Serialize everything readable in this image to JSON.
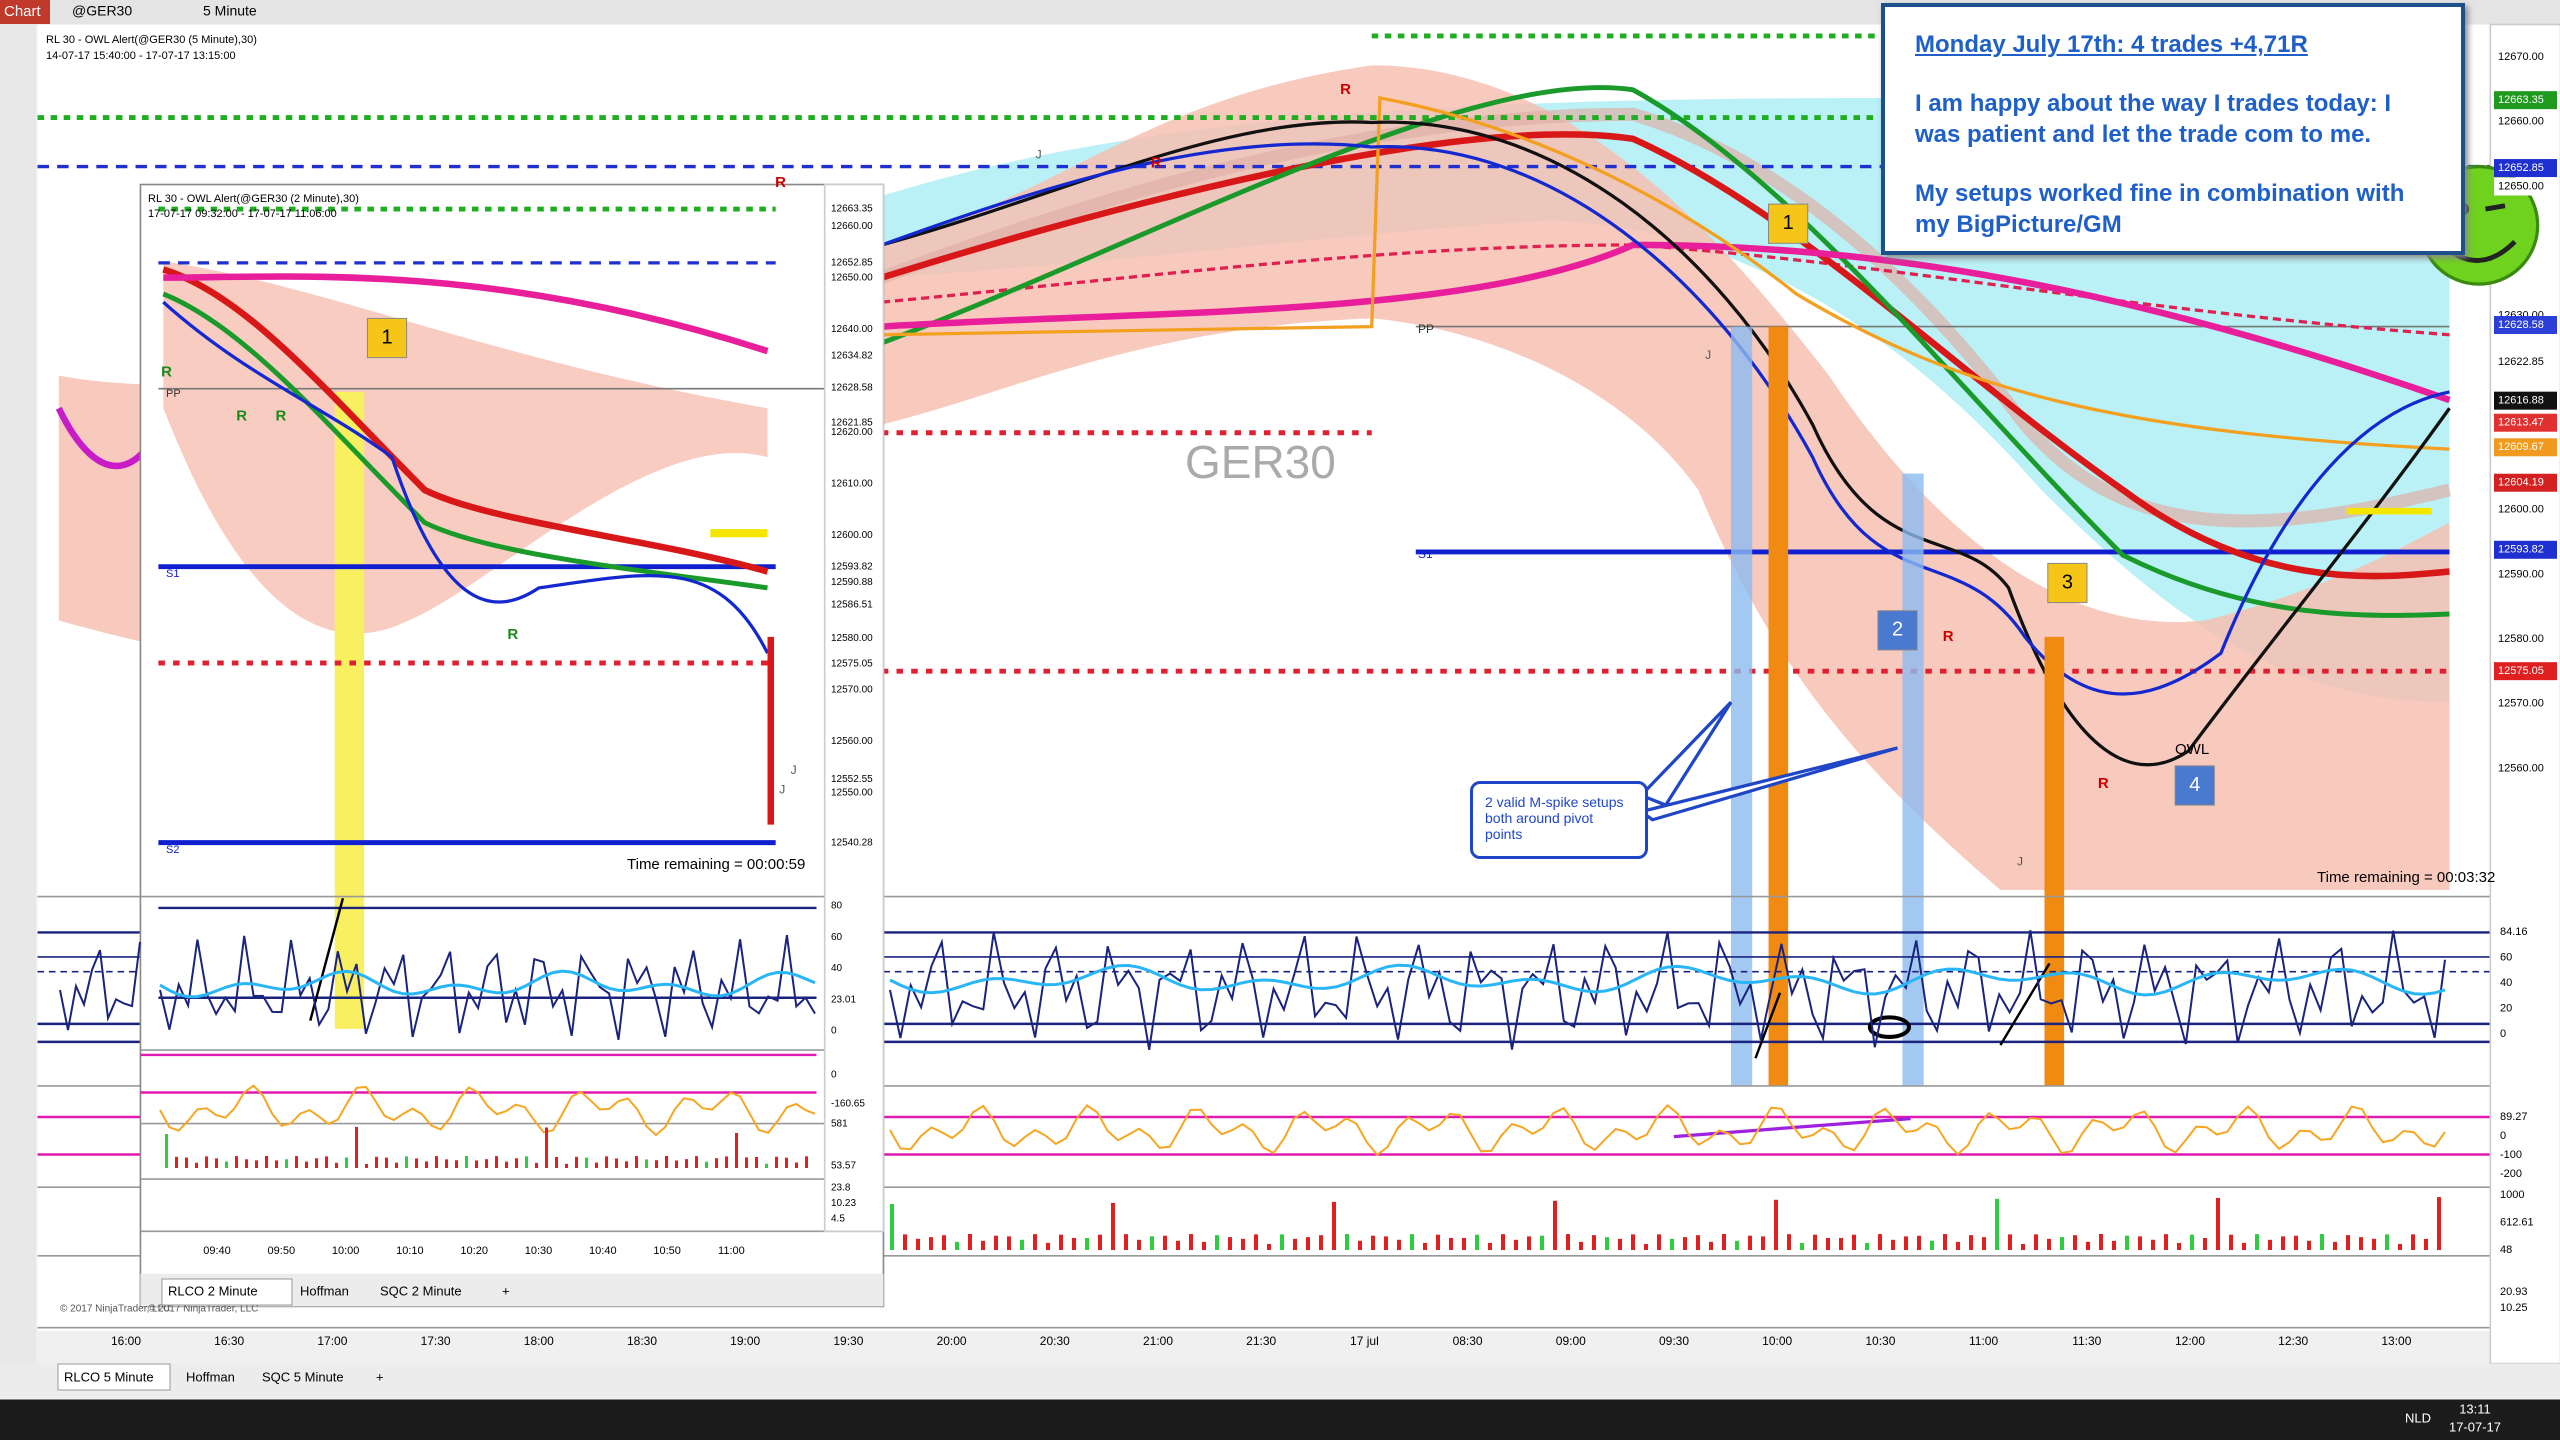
{
  "toolbar": {
    "chart_button": "Chart",
    "instrument": "@GER30",
    "interval": "5 Minute"
  },
  "main_chart": {
    "header": "RL 30 - OWL Alert(@GER30 (5 Minute),30)",
    "range": "14-07-17 15:40:00 - 17-07-17 13:15:00",
    "watermark": "GER30",
    "time_remaining": "Time remaining = 00:03:32",
    "pivot_labels": [
      "PP",
      "S1"
    ],
    "markers": [
      "1",
      "2",
      "3",
      "4"
    ],
    "owl": "OWL",
    "r_marker": "R",
    "j_marker": "J",
    "callout": "2 valid M-spike setups both around pivot points",
    "copyright": "© 2017 NinjaTrader, LLC",
    "price_labels": [
      {
        "text": "12670.00",
        "color": "#ffffff"
      },
      {
        "text": "12663.35",
        "color": "#1f9a1f"
      },
      {
        "text": "12660.00",
        "color": "#ffffff"
      },
      {
        "text": "12652.85",
        "color": "#1f2fd0"
      },
      {
        "text": "12650.00",
        "color": "#ffffff"
      },
      {
        "text": "12630.00",
        "color": "#ffffff"
      },
      {
        "text": "12628.58",
        "color": "#2b3fd6"
      },
      {
        "text": "12622.85",
        "color": "#ffffff"
      },
      {
        "text": "12616.88",
        "color": "#111111"
      },
      {
        "text": "12613.47",
        "color": "#e03030"
      },
      {
        "text": "12609.67",
        "color": "#f09a20"
      },
      {
        "text": "12604.19",
        "color": "#d42020"
      },
      {
        "text": "12600.00",
        "color": "#ffffff"
      },
      {
        "text": "12593.82",
        "color": "#1f2fd0"
      },
      {
        "text": "12590.00",
        "color": "#ffffff"
      },
      {
        "text": "12580.00",
        "color": "#ffffff"
      },
      {
        "text": "12575.05",
        "color": "#e02020"
      },
      {
        "text": "12570.00",
        "color": "#ffffff"
      },
      {
        "text": "12560.00",
        "color": "#ffffff"
      }
    ],
    "indicator_labels": [
      "84.16",
      "60",
      "40",
      "20",
      "0"
    ],
    "cci_labels": [
      "89.27",
      "0",
      "-100",
      "-200"
    ],
    "volume_labels": [
      "1000",
      "612.61",
      "48"
    ],
    "bottom_labels": [
      "20.93",
      "10.25"
    ],
    "time_labels": [
      "16:00",
      "16:30",
      "17:00",
      "17:30",
      "18:00",
      "18:30",
      "19:00",
      "19:30",
      "20:00",
      "20:30",
      "21:00",
      "21:30",
      "17 jul",
      "08:30",
      "09:00",
      "09:30",
      "10:00",
      "10:30",
      "11:00",
      "11:30",
      "12:00",
      "12:30",
      "13:00"
    ],
    "tabs": [
      "RLCO  5 Minute",
      "Hoffman",
      "SQC  5 Minute",
      "+"
    ]
  },
  "inset_chart": {
    "header": "RL 30 - OWL Alert(@GER30 (2 Minute),30)",
    "range": "17-07-17 09:32:00 - 17-07-17 11:06:00",
    "time_remaining": "Time remaining = 00:00:59",
    "pivot_labels": [
      "PP",
      "S1",
      "S2"
    ],
    "marker": "1",
    "copyright": "© 2017 NinjaTrader, LLC",
    "price_labels": [
      "12663.35",
      "12660.00",
      "12652.85",
      "12650.00",
      "12640.00",
      "12634.82",
      "12628.58",
      "12621.85",
      "12620.00",
      "12610.00",
      "12600.00",
      "12593.82",
      "12590.88",
      "12586.51",
      "12580.00",
      "12575.05",
      "12570.00",
      "12560.00",
      "12552.55",
      "12550.00",
      "12540.28"
    ],
    "indicator_labels": [
      "80",
      "60",
      "40",
      "23.01",
      "0"
    ],
    "cci_labels": [
      "0",
      "-160.65"
    ],
    "volume_labels": [
      "581",
      "53.57"
    ],
    "bottom_labels": [
      "23.8",
      "10.23",
      "4.5"
    ],
    "time_labels": [
      "09:40",
      "09:50",
      "10:00",
      "10:10",
      "10:20",
      "10:30",
      "10:40",
      "10:50",
      "11:00"
    ],
    "tabs": [
      "RLCO  2 Minute",
      "Hoffman",
      "SQC  2 Minute",
      "+"
    ]
  },
  "note": {
    "title": "Monday July 17th: 4 trades +4,71R",
    "paragraphs": [
      "I am happy about the way I trades today: I was patient and let the trade com to me.",
      "My setups worked fine in combination with my BigPicture/GM"
    ]
  },
  "taskbar": {
    "time": "13:11",
    "date": "17-07-17",
    "language": "NLD"
  }
}
